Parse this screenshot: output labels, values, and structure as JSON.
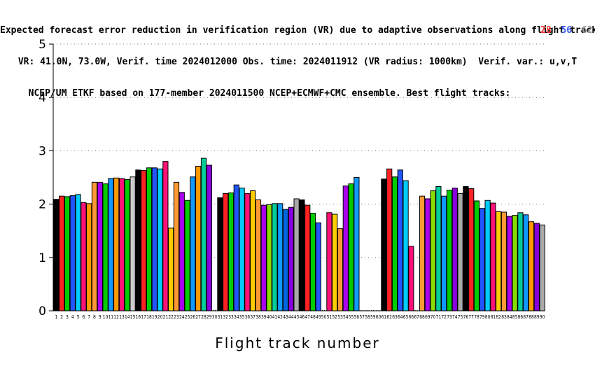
{
  "title_lines": [
    "Expected forecast error reduction in verification region (VR) due to adaptive observations along flight tracks.",
    "VR: 41.0N, 73.0W, Verif. time 2024012000 Obs. time: 2024011912 (VR radius: 1000km)  Verif. var.: u,v,T",
    "NCEP/UM ETKF based on 177-member 2024011500 NCEP+ECMWF+CMC ensemble. Best flight tracks:"
  ],
  "best_tracks": [
    {
      "label": "28",
      "color": "#ff3333"
    },
    {
      "label": "56",
      "color": "#3355ee"
    },
    {
      "label": "62",
      "color": "#999999"
    }
  ],
  "chart_data": {
    "type": "bar",
    "xlabel": "Flight track number",
    "ylabel": "",
    "ylim": [
      0,
      5
    ],
    "yticks": [
      0,
      1,
      2,
      3,
      4,
      5
    ],
    "grid": "dotted horizontal at 1,2,3,4,5",
    "categories": [
      "1",
      "2",
      "3",
      "4",
      "5",
      "6",
      "7",
      "8",
      "9",
      "10",
      "11",
      "12",
      "13",
      "14",
      "15",
      "16",
      "17",
      "18",
      "19",
      "20",
      "21",
      "22",
      "23",
      "24",
      "25",
      "26",
      "27",
      "28",
      "29",
      "30",
      "31",
      "32",
      "33",
      "34",
      "35",
      "36",
      "37",
      "38",
      "39",
      "40",
      "41",
      "42",
      "43",
      "44",
      "45",
      "46",
      "47",
      "48",
      "49",
      "50",
      "51",
      "52",
      "53",
      "54",
      "55",
      "56",
      "57",
      "58",
      "59",
      "60",
      "61",
      "62",
      "63",
      "64",
      "65",
      "66",
      "67",
      "68",
      "69",
      "70",
      "71",
      "72",
      "73",
      "74",
      "75",
      "76",
      "77",
      "78",
      "79",
      "80",
      "81",
      "82",
      "83",
      "84",
      "85",
      "86",
      "87",
      "88",
      "89",
      "90"
    ],
    "values": [
      2.09,
      2.15,
      2.14,
      2.16,
      2.18,
      2.03,
      2.01,
      2.41,
      2.41,
      2.38,
      2.48,
      2.49,
      2.48,
      2.46,
      2.51,
      2.64,
      2.63,
      2.68,
      2.68,
      2.66,
      2.8,
      1.55,
      2.41,
      2.22,
      2.07,
      2.51,
      2.71,
      2.86,
      2.73,
      0,
      2.12,
      2.2,
      2.21,
      2.36,
      2.3,
      2.2,
      2.25,
      2.08,
      1.98,
      1.99,
      2.01,
      2.01,
      1.9,
      1.94,
      2.1,
      2.08,
      1.98,
      1.83,
      1.65,
      0,
      1.84,
      1.81,
      1.54,
      2.34,
      2.38,
      2.5,
      0,
      0,
      0,
      0,
      2.47,
      2.66,
      2.51,
      2.64,
      2.44,
      1.21,
      0,
      2.15,
      2.1,
      2.25,
      2.33,
      2.15,
      2.26,
      2.3,
      2.2,
      2.33,
      2.29,
      2.06,
      1.92,
      2.07,
      2.02,
      1.86,
      1.85,
      1.77,
      1.79,
      1.84,
      1.8,
      1.67,
      1.64,
      1.61
    ],
    "colors": [
      "#000000",
      "#ff2222",
      "#00cc00",
      "#2255ff",
      "#00ccff",
      "#ff1177",
      "#ff9900",
      "#ff9933",
      "#aa00ee",
      "#00cc00",
      "#1199ff",
      "#ff9900",
      "#ff1177",
      "#00cc00",
      "#cccccc",
      "#000000",
      "#ff2222",
      "#00cc00",
      "#2255ff",
      "#00ccff",
      "#ff1177",
      "#ffcc00",
      "#ff9933",
      "#aa00ee",
      "#00cc00",
      "#1199ff",
      "#ff9900",
      "#00cc99",
      "#8800dd",
      "#ffffff",
      "#000000",
      "#ff2222",
      "#00cc00",
      "#2255ff",
      "#00ccff",
      "#ff1177",
      "#ffcc00",
      "#ff9933",
      "#aa00ee",
      "#88dd00",
      "#00cc99",
      "#1199ff",
      "#0066dd",
      "#8800dd",
      "#aaaaaa",
      "#000000",
      "#ff2222",
      "#00cc00",
      "#2255ff",
      "#ffffff",
      "#ff1177",
      "#ffcc00",
      "#ff9933",
      "#aa00ee",
      "#00cc00",
      "#1199ff",
      "#ffffff",
      "#ffffff",
      "#ffffff",
      "#ffffff",
      "#000000",
      "#ff2222",
      "#00cc00",
      "#2255ff",
      "#00ccff",
      "#ff1177",
      "#ffffff",
      "#ff9933",
      "#aa00ee",
      "#88dd00",
      "#00cc99",
      "#1199ff",
      "#00cc00",
      "#8800dd",
      "#aaaaaa",
      "#000000",
      "#ff2222",
      "#00cc00",
      "#2255ff",
      "#00ccff",
      "#ff1177",
      "#ffcc00",
      "#ff9933",
      "#aa00ee",
      "#88dd00",
      "#00cc99",
      "#1199ff",
      "#ff9900",
      "#8800dd",
      "#aaaaaa"
    ]
  }
}
